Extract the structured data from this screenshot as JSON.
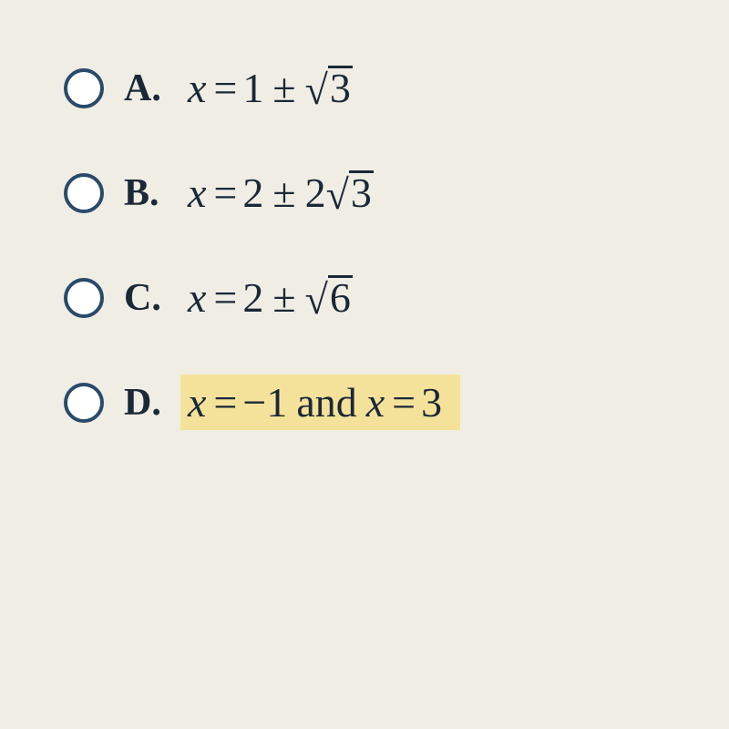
{
  "colors": {
    "page_bg": "#f0ede4",
    "radio_border": "#2a4a6a",
    "radio_fill": "#ffffff",
    "text": "#1a2838",
    "highlight": "#f5e29a",
    "sqrt_bar": "#1a2838"
  },
  "typography": {
    "label_fontsize": 42,
    "math_fontsize": 46,
    "font_family": "Times New Roman"
  },
  "options": [
    {
      "id": "A",
      "label": "A.",
      "variable": "x",
      "rhs_leading": "1",
      "operator": "±",
      "coeff": "",
      "radicand": "3",
      "highlighted": false
    },
    {
      "id": "B",
      "label": "B.",
      "variable": "x",
      "rhs_leading": "2",
      "operator": "±",
      "coeff": "2",
      "radicand": "3",
      "highlighted": false
    },
    {
      "id": "C",
      "label": "C.",
      "variable": "x",
      "rhs_leading": "2",
      "operator": "±",
      "coeff": "",
      "radicand": "6",
      "highlighted": false
    },
    {
      "id": "D",
      "label": "D.",
      "variable": "x",
      "value1": "−1",
      "joiner": "and",
      "value2": "3",
      "highlighted": true
    }
  ]
}
